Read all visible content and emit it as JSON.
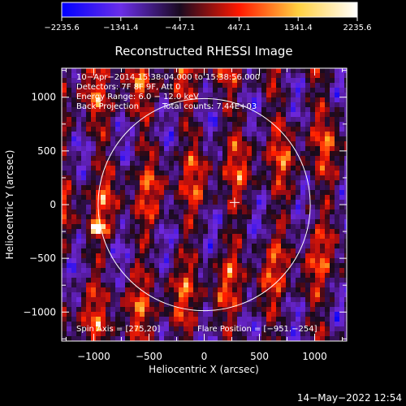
{
  "chart_data": {
    "type": "heatmap",
    "title": "Reconstructed RHESSI Image",
    "xlabel": "Heliocentric X (arcsec)",
    "ylabel": "Heliocentric Y (arcsec)",
    "xlim": [
      -1290,
      1290
    ],
    "ylim": [
      -1270,
      1270
    ],
    "x_ticks": [
      {
        "value": -1000,
        "label": "−1000"
      },
      {
        "value": -500,
        "label": "−500"
      },
      {
        "value": 0,
        "label": "0"
      },
      {
        "value": 500,
        "label": "500"
      },
      {
        "value": 1000,
        "label": "1000"
      }
    ],
    "y_ticks": [
      {
        "value": -1000,
        "label": "−1000"
      },
      {
        "value": -500,
        "label": "−500"
      },
      {
        "value": 0,
        "label": "0"
      },
      {
        "value": 500,
        "label": "500"
      },
      {
        "value": 1000,
        "label": "1000"
      }
    ],
    "colorbar": {
      "min": -2235.6,
      "max": 2235.6,
      "ticks": [
        {
          "value": -2235.6,
          "label": "−2235.6"
        },
        {
          "value": -1341.4,
          "label": "−1341.4"
        },
        {
          "value": -447.1,
          "label": "−447.1"
        },
        {
          "value": 447.1,
          "label": "447.1"
        },
        {
          "value": 1341.4,
          "label": "1341.4"
        },
        {
          "value": 2235.6,
          "label": "2235.6"
        }
      ],
      "colors": [
        "#0000ff",
        "#6a2ee8",
        "#1a0a20",
        "#ff1800",
        "#ffd040",
        "#ffffff"
      ]
    },
    "annotations": {
      "time_range": "10−Apr−2014 15:38:04.000 to 15:38:56.000",
      "detectors": "Detectors: 7F 8F 9F, Att 0",
      "energy_range": "Energy Range: 6.0 − 12.0 keV",
      "method": "Back Projection",
      "total_counts": "Total counts: 7.44E+03",
      "spin_axis": "Spin Axis = [275,20]",
      "flare_position": "Flare Position = [−951.−254]"
    },
    "solar_limb_radius": 960,
    "center_cross": {
      "x": 275,
      "y": 20
    }
  },
  "footer": {
    "timestamp": "14−May−2022 12:54"
  }
}
